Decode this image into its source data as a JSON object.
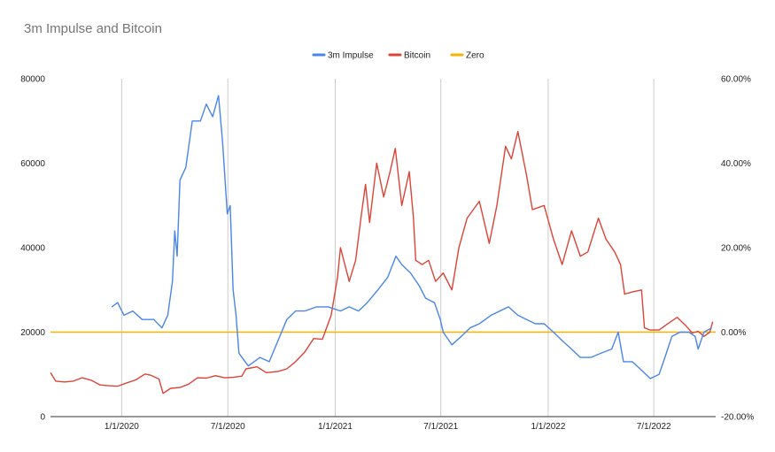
{
  "chart_data": {
    "type": "line",
    "title": "3m Impulse and Bitcoin",
    "legend_position": "top",
    "grid": "vertical",
    "x_axis": {
      "type": "date",
      "range": [
        "2019-09-01",
        "2022-10-15"
      ],
      "tick_labels": [
        "1/1/2020",
        "7/1/2020",
        "1/1/2021",
        "7/1/2021",
        "1/1/2022",
        "7/1/2022"
      ],
      "tick_dates": [
        "2020-01-01",
        "2020-07-01",
        "2021-01-01",
        "2021-07-01",
        "2022-01-01",
        "2022-07-01"
      ]
    },
    "y_left": {
      "range": [
        0,
        80000
      ],
      "ticks": [
        0,
        20000,
        40000,
        60000,
        80000
      ],
      "tick_labels": [
        "0",
        "20000",
        "40000",
        "60000",
        "80000"
      ]
    },
    "y_right": {
      "range": [
        -0.2,
        0.6
      ],
      "ticks": [
        -0.2,
        0,
        0.2,
        0.4,
        0.6
      ],
      "tick_labels": [
        "-20.00%",
        "0.00%",
        "20.00%",
        "40.00%",
        "60.00%"
      ]
    },
    "series": [
      {
        "name": "3m Impulse",
        "axis": "right",
        "color": "#4a86e8",
        "points": [
          [
            "2019-12-15",
            0.06
          ],
          [
            "2019-12-25",
            0.07
          ],
          [
            "2020-01-05",
            0.04
          ],
          [
            "2020-01-20",
            0.05
          ],
          [
            "2020-02-05",
            0.03
          ],
          [
            "2020-02-25",
            0.03
          ],
          [
            "2020-03-10",
            0.01
          ],
          [
            "2020-03-20",
            0.04
          ],
          [
            "2020-03-28",
            0.12
          ],
          [
            "2020-04-01",
            0.24
          ],
          [
            "2020-04-05",
            0.18
          ],
          [
            "2020-04-10",
            0.36
          ],
          [
            "2020-04-20",
            0.39
          ],
          [
            "2020-05-01",
            0.5
          ],
          [
            "2020-05-15",
            0.5
          ],
          [
            "2020-05-25",
            0.54
          ],
          [
            "2020-06-05",
            0.51
          ],
          [
            "2020-06-15",
            0.56
          ],
          [
            "2020-06-22",
            0.45
          ],
          [
            "2020-06-30",
            0.28
          ],
          [
            "2020-07-05",
            0.3
          ],
          [
            "2020-07-10",
            0.1
          ],
          [
            "2020-07-15",
            0.04
          ],
          [
            "2020-07-20",
            -0.05
          ],
          [
            "2020-08-05",
            -0.08
          ],
          [
            "2020-08-25",
            -0.06
          ],
          [
            "2020-09-10",
            -0.07
          ],
          [
            "2020-09-25",
            -0.02
          ],
          [
            "2020-10-10",
            0.03
          ],
          [
            "2020-10-25",
            0.05
          ],
          [
            "2020-11-10",
            0.05
          ],
          [
            "2020-11-30",
            0.06
          ],
          [
            "2020-12-20",
            0.06
          ],
          [
            "2021-01-10",
            0.05
          ],
          [
            "2021-01-25",
            0.06
          ],
          [
            "2021-02-10",
            0.05
          ],
          [
            "2021-02-25",
            0.07
          ],
          [
            "2021-03-15",
            0.1
          ],
          [
            "2021-04-01",
            0.13
          ],
          [
            "2021-04-15",
            0.18
          ],
          [
            "2021-04-25",
            0.16
          ],
          [
            "2021-05-10",
            0.14
          ],
          [
            "2021-05-25",
            0.11
          ],
          [
            "2021-06-05",
            0.08
          ],
          [
            "2021-06-20",
            0.07
          ],
          [
            "2021-06-30",
            0.03
          ],
          [
            "2021-07-05",
            0.0
          ],
          [
            "2021-07-20",
            -0.03
          ],
          [
            "2021-08-05",
            -0.01
          ],
          [
            "2021-08-20",
            0.01
          ],
          [
            "2021-09-05",
            0.02
          ],
          [
            "2021-09-25",
            0.04
          ],
          [
            "2021-10-10",
            0.05
          ],
          [
            "2021-10-25",
            0.06
          ],
          [
            "2021-11-10",
            0.04
          ],
          [
            "2021-11-25",
            0.03
          ],
          [
            "2021-12-10",
            0.02
          ],
          [
            "2021-12-25",
            0.02
          ],
          [
            "2022-01-10",
            0.0
          ],
          [
            "2022-01-25",
            -0.02
          ],
          [
            "2022-02-10",
            -0.04
          ],
          [
            "2022-02-25",
            -0.06
          ],
          [
            "2022-03-15",
            -0.06
          ],
          [
            "2022-04-01",
            -0.05
          ],
          [
            "2022-04-20",
            -0.04
          ],
          [
            "2022-05-01",
            0.0
          ],
          [
            "2022-05-10",
            -0.07
          ],
          [
            "2022-05-25",
            -0.07
          ],
          [
            "2022-06-10",
            -0.09
          ],
          [
            "2022-06-25",
            -0.11
          ],
          [
            "2022-07-10",
            -0.1
          ],
          [
            "2022-07-20",
            -0.06
          ],
          [
            "2022-08-01",
            -0.01
          ],
          [
            "2022-08-15",
            0.0
          ],
          [
            "2022-08-30",
            0.0
          ],
          [
            "2022-09-10",
            -0.01
          ],
          [
            "2022-09-15",
            -0.04
          ],
          [
            "2022-09-25",
            0.0
          ],
          [
            "2022-10-08",
            0.01
          ]
        ]
      },
      {
        "name": "Bitcoin",
        "axis": "left",
        "color": "#db4437",
        "points": [
          [
            "2019-09-01",
            10400
          ],
          [
            "2019-09-10",
            8400
          ],
          [
            "2019-09-25",
            8200
          ],
          [
            "2019-10-10",
            8400
          ],
          [
            "2019-10-25",
            9200
          ],
          [
            "2019-11-10",
            8600
          ],
          [
            "2019-11-25",
            7500
          ],
          [
            "2019-12-10",
            7300
          ],
          [
            "2019-12-25",
            7200
          ],
          [
            "2020-01-10",
            8000
          ],
          [
            "2020-01-25",
            8700
          ],
          [
            "2020-02-10",
            10100
          ],
          [
            "2020-02-20",
            9800
          ],
          [
            "2020-03-05",
            8900
          ],
          [
            "2020-03-12",
            5500
          ],
          [
            "2020-03-25",
            6700
          ],
          [
            "2020-04-10",
            6900
          ],
          [
            "2020-04-25",
            7700
          ],
          [
            "2020-05-10",
            9200
          ],
          [
            "2020-05-25",
            9100
          ],
          [
            "2020-06-10",
            9700
          ],
          [
            "2020-06-25",
            9200
          ],
          [
            "2020-07-10",
            9300
          ],
          [
            "2020-07-25",
            9600
          ],
          [
            "2020-08-01",
            11300
          ],
          [
            "2020-08-20",
            11800
          ],
          [
            "2020-09-05",
            10400
          ],
          [
            "2020-09-25",
            10700
          ],
          [
            "2020-10-10",
            11300
          ],
          [
            "2020-10-25",
            13000
          ],
          [
            "2020-11-10",
            15300
          ],
          [
            "2020-11-25",
            18500
          ],
          [
            "2020-12-10",
            18300
          ],
          [
            "2020-12-25",
            24000
          ],
          [
            "2021-01-05",
            33000
          ],
          [
            "2021-01-10",
            40000
          ],
          [
            "2021-01-25",
            32000
          ],
          [
            "2021-02-05",
            37000
          ],
          [
            "2021-02-15",
            48000
          ],
          [
            "2021-02-22",
            55000
          ],
          [
            "2021-03-01",
            46000
          ],
          [
            "2021-03-13",
            60000
          ],
          [
            "2021-03-25",
            52000
          ],
          [
            "2021-04-05",
            58000
          ],
          [
            "2021-04-14",
            63500
          ],
          [
            "2021-04-25",
            50000
          ],
          [
            "2021-05-08",
            58000
          ],
          [
            "2021-05-15",
            47000
          ],
          [
            "2021-05-19",
            37000
          ],
          [
            "2021-05-30",
            36000
          ],
          [
            "2021-06-10",
            37000
          ],
          [
            "2021-06-22",
            32000
          ],
          [
            "2021-07-05",
            34000
          ],
          [
            "2021-07-20",
            30000
          ],
          [
            "2021-08-01",
            40000
          ],
          [
            "2021-08-15",
            47000
          ],
          [
            "2021-09-05",
            51000
          ],
          [
            "2021-09-22",
            41000
          ],
          [
            "2021-10-05",
            50000
          ],
          [
            "2021-10-20",
            64000
          ],
          [
            "2021-10-30",
            61000
          ],
          [
            "2021-11-10",
            67500
          ],
          [
            "2021-11-25",
            57000
          ],
          [
            "2021-12-05",
            49000
          ],
          [
            "2021-12-25",
            50000
          ],
          [
            "2022-01-10",
            42000
          ],
          [
            "2022-01-25",
            36000
          ],
          [
            "2022-02-10",
            44000
          ],
          [
            "2022-02-25",
            38000
          ],
          [
            "2022-03-10",
            39000
          ],
          [
            "2022-03-28",
            47000
          ],
          [
            "2022-04-10",
            42000
          ],
          [
            "2022-04-25",
            39000
          ],
          [
            "2022-05-05",
            36000
          ],
          [
            "2022-05-12",
            29000
          ],
          [
            "2022-05-25",
            29500
          ],
          [
            "2022-06-10",
            30000
          ],
          [
            "2022-06-15",
            21000
          ],
          [
            "2022-06-25",
            20500
          ],
          [
            "2022-07-10",
            20500
          ],
          [
            "2022-07-25",
            22000
          ],
          [
            "2022-08-10",
            23500
          ],
          [
            "2022-08-25",
            21500
          ],
          [
            "2022-09-05",
            19800
          ],
          [
            "2022-09-15",
            20200
          ],
          [
            "2022-09-25",
            19000
          ],
          [
            "2022-10-05",
            20000
          ],
          [
            "2022-10-10",
            22500
          ]
        ]
      },
      {
        "name": "Zero",
        "axis": "right",
        "color": "#f4b400",
        "points": [
          [
            "2019-09-01",
            0
          ],
          [
            "2022-10-15",
            0
          ]
        ]
      }
    ]
  }
}
